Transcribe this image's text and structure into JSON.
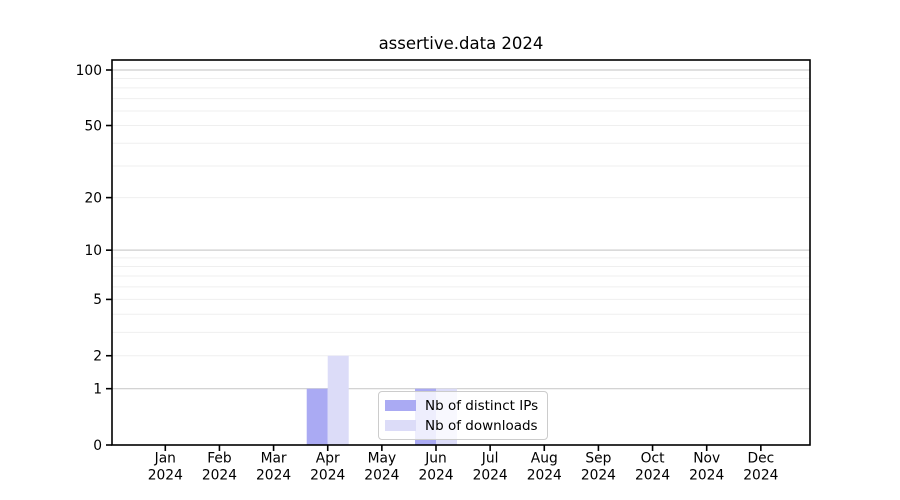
{
  "chart_data": {
    "type": "bar",
    "title": "assertive.data 2024",
    "categories": [
      "Jan",
      "Feb",
      "Mar",
      "Apr",
      "May",
      "Jun",
      "Jul",
      "Aug",
      "Sep",
      "Oct",
      "Nov",
      "Dec"
    ],
    "x_year_label": "2024",
    "series": [
      {
        "name": "Nb of distinct IPs",
        "color": "#aaaaf3",
        "values": [
          0,
          0,
          0,
          1,
          0,
          1,
          0,
          0,
          0,
          0,
          0,
          0
        ]
      },
      {
        "name": "Nb of downloads",
        "color": "#dcdcf8",
        "values": [
          0,
          0,
          0,
          2,
          0,
          1,
          0,
          0,
          0,
          0,
          0,
          0
        ]
      }
    ],
    "y_axis": {
      "scale": "log10(value+1)",
      "tick_labels": [
        "100",
        "50",
        "20",
        "10",
        "5",
        "2",
        "1",
        "0"
      ],
      "tick_values": [
        100,
        50,
        20,
        10,
        5,
        2,
        1,
        0
      ],
      "major_gridlines": [
        1,
        10,
        100
      ],
      "minor_gridlines": [
        2,
        3,
        4,
        5,
        6,
        7,
        8,
        9,
        20,
        30,
        40,
        50,
        60,
        70,
        80,
        90
      ],
      "range": [
        0,
        113
      ]
    },
    "grid": true,
    "legend_position": "lower center"
  },
  "colors": {
    "axis": "#000000",
    "text": "#000000",
    "major_grid": "#cdcdcd",
    "minor_grid": "#efefef",
    "background": "#ffffff",
    "legend_border": "#cccccc"
  }
}
